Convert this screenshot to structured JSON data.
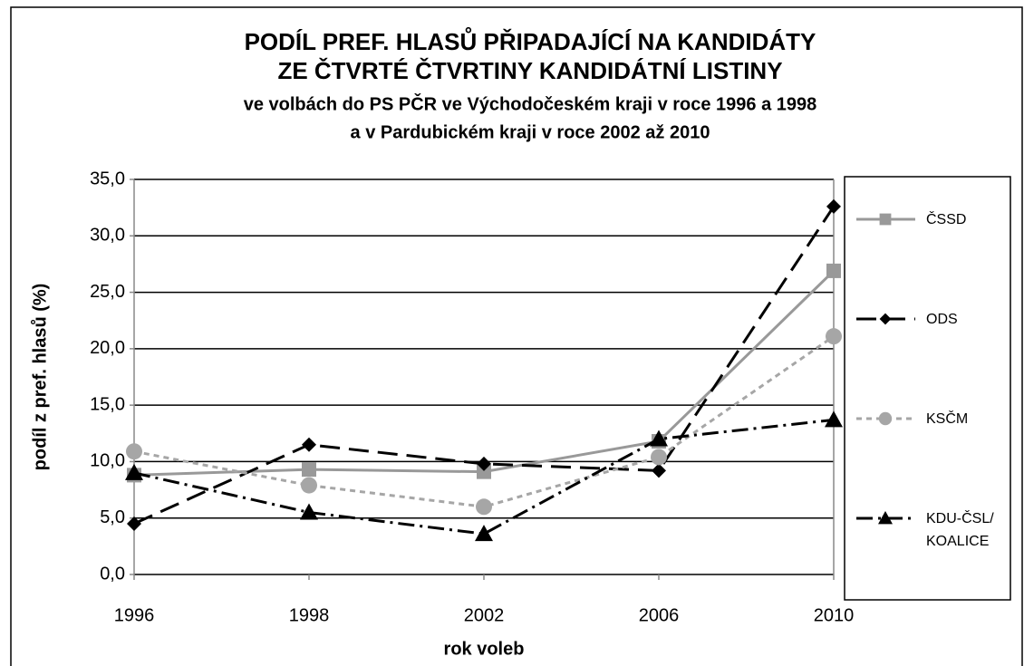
{
  "chart_data": {
    "type": "line",
    "title": [
      "PODÍL PREF. HLASŮ PŘIPADAJÍCÍ NA KANDIDÁTY",
      "ZE ČTVRTÉ ČTVRTINY KANDIDÁTNÍ LISTINY"
    ],
    "subtitle": [
      "ve volbách do PS PČR ve Východočeském kraji v roce 1996 a 1998",
      "a v Pardubickém kraji v roce 2002 až 2010"
    ],
    "x_label": "rok voleb",
    "y_label": "podíl z pref. hlasů (%)",
    "categories": [
      "1996",
      "1998",
      "2002",
      "2006",
      "2010"
    ],
    "series": [
      {
        "name": "ČSSD",
        "color": "#999999",
        "dash": "none",
        "marker": "square",
        "values": [
          8.8,
          9.3,
          9.1,
          11.8,
          26.9
        ]
      },
      {
        "name": "ODS",
        "color": "#000000",
        "dash": "22 10",
        "marker": "diamond",
        "values": [
          4.5,
          11.5,
          9.8,
          9.2,
          32.6
        ]
      },
      {
        "name": "KSČM",
        "color": "#a6a6a6",
        "dash": "6 5",
        "marker": "circle",
        "values": [
          10.9,
          7.9,
          6.0,
          10.4,
          21.1
        ]
      },
      {
        "name": "KDU-ČSL/ KOALICE",
        "color": "#000000",
        "dash": "18 6 3 6",
        "marker": "triangle",
        "values": [
          9.0,
          5.5,
          3.6,
          12.0,
          13.7
        ]
      }
    ],
    "ylim": [
      0,
      35
    ],
    "yticks": [
      {
        "value": 0,
        "label": "0,0"
      },
      {
        "value": 5,
        "label": "5,0"
      },
      {
        "value": 10,
        "label": "10,0"
      },
      {
        "value": 15,
        "label": "15,0"
      },
      {
        "value": 20,
        "label": "20,0"
      },
      {
        "value": 25,
        "label": "25,0"
      },
      {
        "value": 30,
        "label": "30,0"
      },
      {
        "value": 35,
        "label": "35,0"
      }
    ],
    "grid": true,
    "legend": "right"
  }
}
